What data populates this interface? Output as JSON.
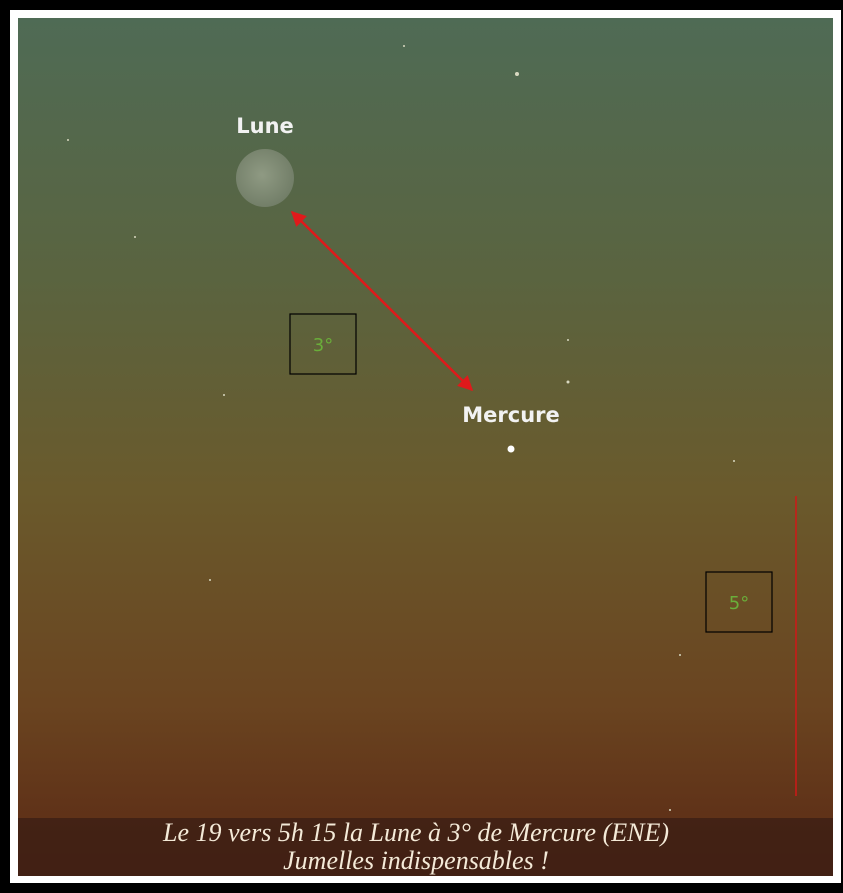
{
  "moon_label": "Lune",
  "mercury_label": "Mercure",
  "separation_label": "3°",
  "scale_label": "5°",
  "caption": {
    "line1": "Le 19 vers 5h 15 la Lune à 3° de Mercure (ENE)",
    "line2": "Jumelles indispensables !"
  }
}
